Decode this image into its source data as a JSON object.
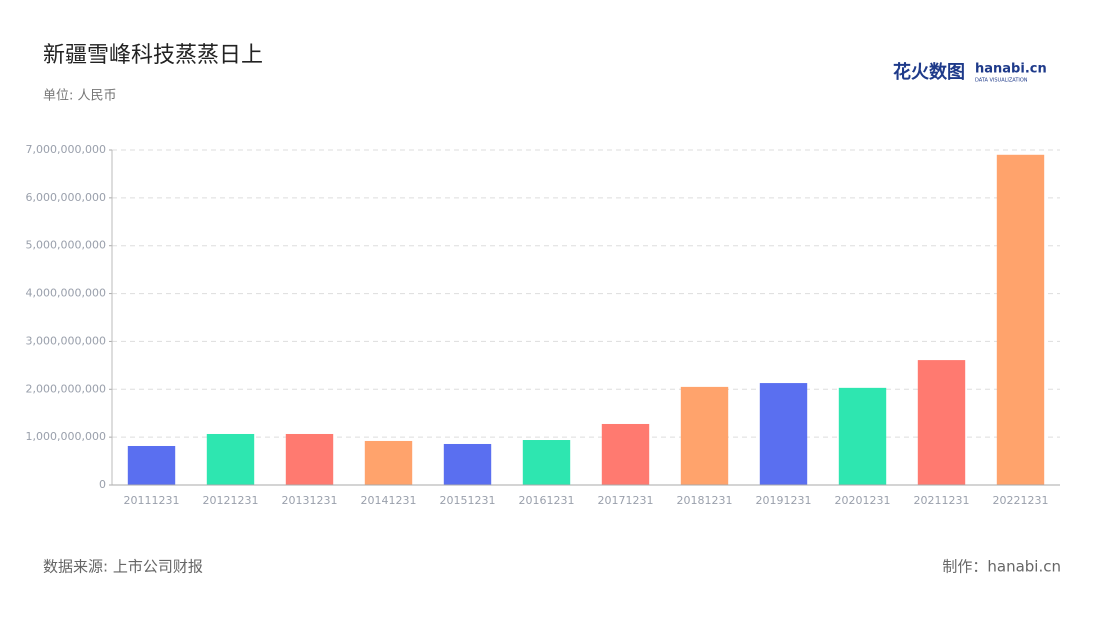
{
  "chart_data": {
    "type": "bar",
    "title": "新疆雪峰科技蒸蒸日上",
    "subtitle": "单位: 人民币",
    "categories": [
      "20111231",
      "20121231",
      "20131231",
      "20141231",
      "20151231",
      "20161231",
      "20171231",
      "20181231",
      "20191231",
      "20201231",
      "20211231",
      "20221231"
    ],
    "values": [
      815000000,
      1066000000,
      1066000000,
      920000000,
      857000000,
      940000000,
      1275000000,
      2050000000,
      2130000000,
      2030000000,
      2610000000,
      6900000000
    ],
    "colors": [
      "#5a6ff0",
      "#2ee6b0",
      "#ff7a70",
      "#ffa36c",
      "#5a6ff0",
      "#2ee6b0",
      "#ff7a70",
      "#ffa36c",
      "#5a6ff0",
      "#2ee6b0",
      "#ff7a70",
      "#ffa36c"
    ],
    "ylim": [
      0,
      7000000000
    ],
    "yticks": [
      0,
      {
        "value": 1000000000,
        "label": "1,000,000,000"
      },
      {
        "value": 2000000000,
        "label": "2,000,000,000"
      },
      {
        "value": 3000000000,
        "label": "3,000,000,000"
      },
      {
        "value": 4000000000,
        "label": "4,000,000,000"
      },
      {
        "value": 5000000000,
        "label": "5,000,000,000"
      },
      {
        "value": 6000000000,
        "label": "6,000,000,000"
      },
      {
        "value": 7000000000,
        "label": "7,000,000,000"
      }
    ],
    "grid": true,
    "source": "数据来源: 上市公司财报",
    "credit": "制作：hanabi.cn"
  },
  "logo": {
    "cn": "花火数图",
    "en": "hanabi.cn",
    "tagline": "DATA VISUALIZATION"
  }
}
